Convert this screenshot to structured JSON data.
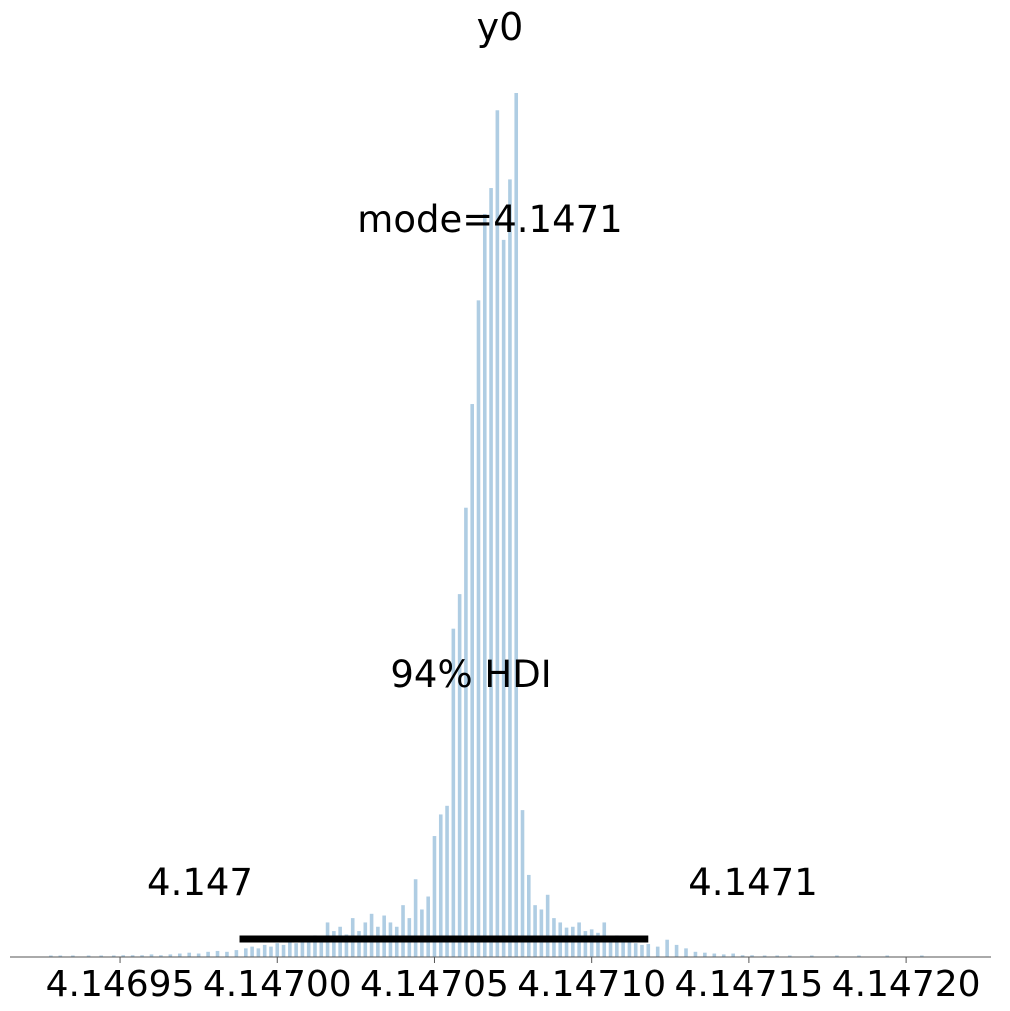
{
  "chart_data": {
    "type": "bar",
    "title": "y0",
    "point_estimate_label": "mode=4.1471",
    "hdi_label": "94% HDI",
    "hdi_low_label": "4.147",
    "hdi_high_label": "4.1471",
    "hdi_range": [
      4.146988,
      4.147118
    ],
    "xlim": [
      4.146915,
      4.147227
    ],
    "xticks": [
      4.14695,
      4.147,
      4.14705,
      4.1471,
      4.14715,
      4.1472
    ],
    "xtick_labels": [
      "4.14695",
      "4.14700",
      "4.14705",
      "4.14710",
      "4.14715",
      "4.14720"
    ],
    "yaxis_visible": false,
    "grid": false,
    "bar_color": "#afcde3",
    "hdi_color": "#000000",
    "bins": [
      [
        4.146928,
        1
      ],
      [
        4.146931,
        1
      ],
      [
        4.146935,
        1
      ],
      [
        4.14694,
        1
      ],
      [
        4.146944,
        1
      ],
      [
        4.146948,
        1
      ],
      [
        4.146951,
        2
      ],
      [
        4.146954,
        2
      ],
      [
        4.146957,
        2
      ],
      [
        4.14696,
        3
      ],
      [
        4.146963,
        2
      ],
      [
        4.146966,
        3
      ],
      [
        4.146969,
        4
      ],
      [
        4.146972,
        5
      ],
      [
        4.146975,
        4
      ],
      [
        4.146978,
        6
      ],
      [
        4.146981,
        7
      ],
      [
        4.146984,
        6
      ],
      [
        4.146987,
        8
      ],
      [
        4.14699,
        10
      ],
      [
        4.146992,
        12
      ],
      [
        4.146994,
        10
      ],
      [
        4.146996,
        14
      ],
      [
        4.146998,
        12
      ],
      [
        4.147,
        16
      ],
      [
        4.147002,
        14
      ],
      [
        4.147004,
        18
      ],
      [
        4.147006,
        16
      ],
      [
        4.147008,
        20
      ],
      [
        4.14701,
        18
      ],
      [
        4.147012,
        25
      ],
      [
        4.147014,
        22
      ],
      [
        4.147016,
        40
      ],
      [
        4.147018,
        30
      ],
      [
        4.14702,
        35
      ],
      [
        4.147022,
        26
      ],
      [
        4.147024,
        45
      ],
      [
        4.147026,
        30
      ],
      [
        4.147028,
        40
      ],
      [
        4.14703,
        50
      ],
      [
        4.147032,
        35
      ],
      [
        4.147034,
        48
      ],
      [
        4.147036,
        40
      ],
      [
        4.147038,
        35
      ],
      [
        4.14704,
        60
      ],
      [
        4.147042,
        45
      ],
      [
        4.147044,
        90
      ],
      [
        4.147046,
        55
      ],
      [
        4.147048,
        70
      ],
      [
        4.14705,
        140
      ],
      [
        4.147052,
        165
      ],
      [
        4.147054,
        175
      ],
      [
        4.147056,
        380
      ],
      [
        4.147058,
        420
      ],
      [
        4.14706,
        520
      ],
      [
        4.147062,
        640
      ],
      [
        4.147064,
        760
      ],
      [
        4.147066,
        860
      ],
      [
        4.147068,
        890
      ],
      [
        4.14707,
        980
      ],
      [
        4.147072,
        830
      ],
      [
        4.147074,
        900
      ],
      [
        4.147076,
        1000
      ],
      [
        4.147078,
        170
      ],
      [
        4.14708,
        95
      ],
      [
        4.147082,
        60
      ],
      [
        4.147084,
        55
      ],
      [
        4.147086,
        72
      ],
      [
        4.147088,
        45
      ],
      [
        4.14709,
        40
      ],
      [
        4.147092,
        34
      ],
      [
        4.147094,
        35
      ],
      [
        4.147096,
        40
      ],
      [
        4.147098,
        30
      ],
      [
        4.1471,
        32
      ],
      [
        4.147102,
        28
      ],
      [
        4.147104,
        40
      ],
      [
        4.147106,
        22
      ],
      [
        4.147108,
        25
      ],
      [
        4.14711,
        20
      ],
      [
        4.147112,
        18
      ],
      [
        4.147114,
        16
      ],
      [
        4.147116,
        14
      ],
      [
        4.147118,
        15
      ],
      [
        4.147121,
        12
      ],
      [
        4.147124,
        20
      ],
      [
        4.147127,
        14
      ],
      [
        4.14713,
        10
      ],
      [
        4.147133,
        6
      ],
      [
        4.147136,
        5
      ],
      [
        4.147139,
        4
      ],
      [
        4.147142,
        3
      ],
      [
        4.147145,
        4
      ],
      [
        4.147148,
        2
      ],
      [
        4.147151,
        2
      ],
      [
        4.147155,
        1
      ],
      [
        4.147159,
        1
      ],
      [
        4.147163,
        1
      ],
      [
        4.14717,
        1
      ],
      [
        4.147178,
        1
      ],
      [
        4.147185,
        1
      ],
      [
        4.147194,
        1
      ],
      [
        4.147205,
        1
      ]
    ]
  }
}
